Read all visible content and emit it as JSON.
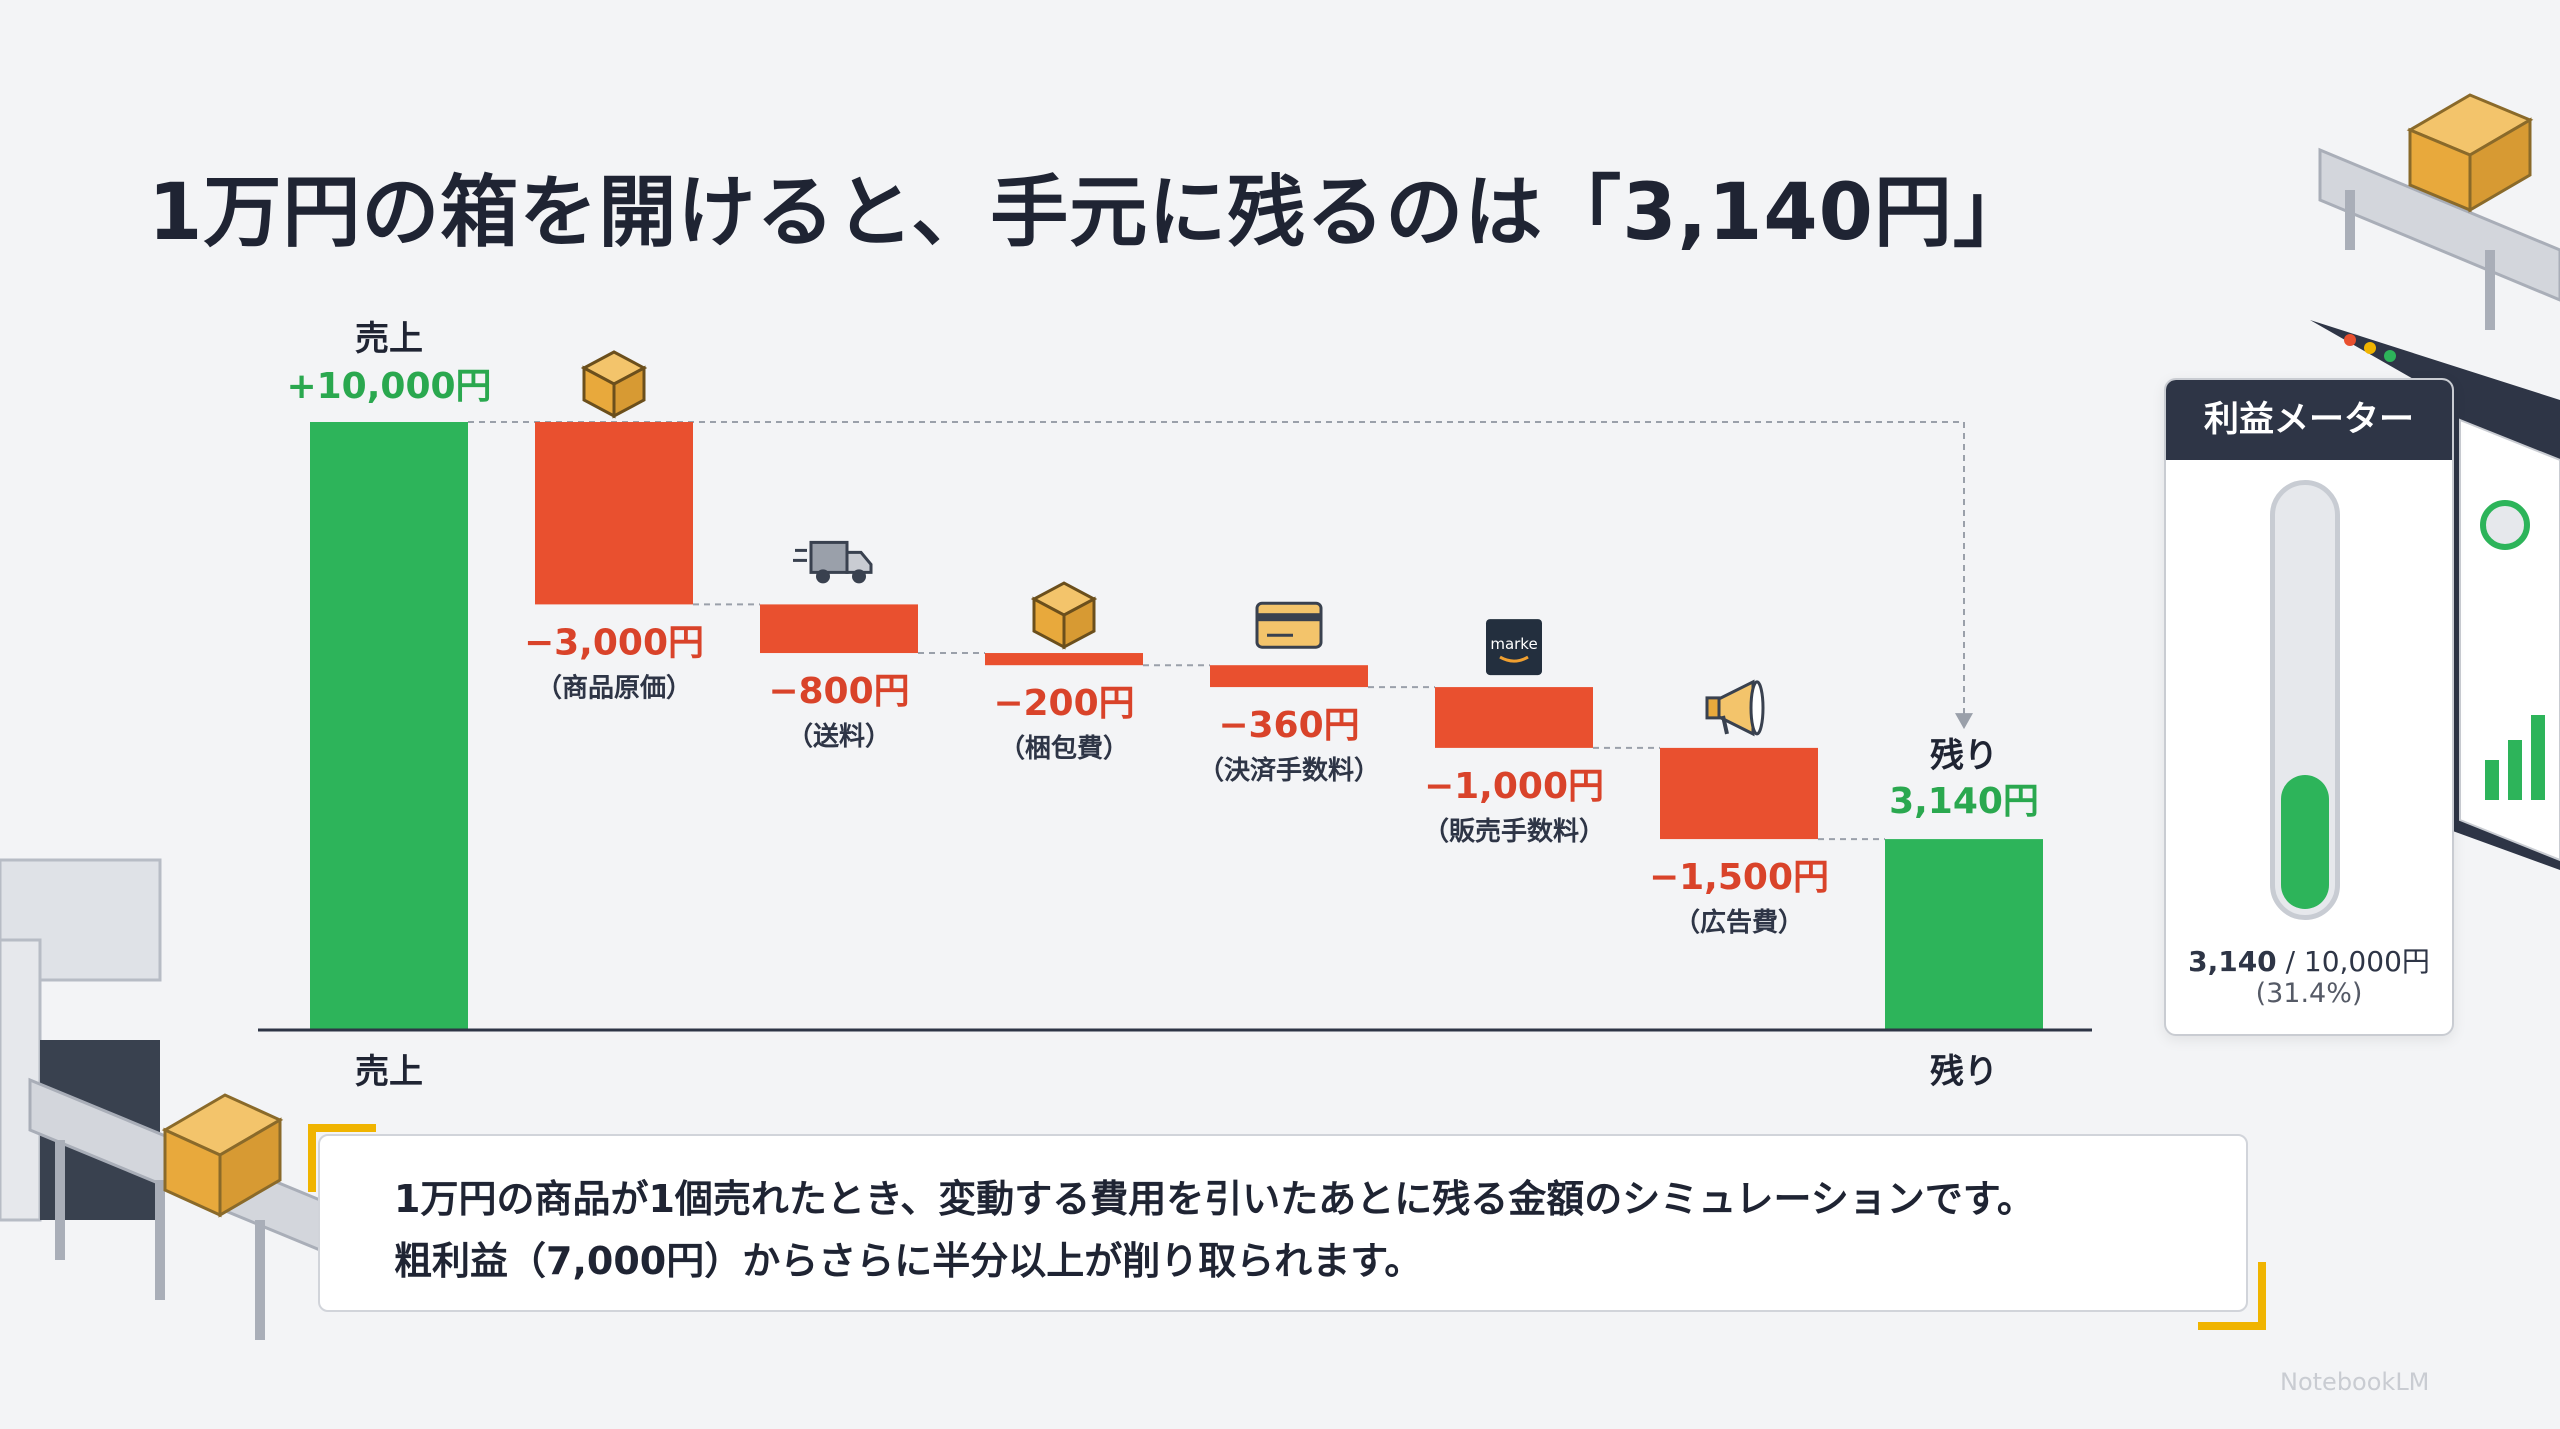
{
  "title": "1万円の箱を開けると、手元に残るのは「3,140円」",
  "chart_data": {
    "type": "bar",
    "subtype": "waterfall",
    "currency_unit": "円",
    "start": {
      "name": "売上",
      "value": 10000,
      "value_label": "+10,000円",
      "axis_label": "売上"
    },
    "steps": [
      {
        "name": "商品原価",
        "value": -3000,
        "value_label": "−3,000円",
        "sub_label": "（商品原価）",
        "icon": "package-icon"
      },
      {
        "name": "送料",
        "value": -800,
        "value_label": "−800円",
        "sub_label": "（送料）",
        "icon": "delivery-truck-icon"
      },
      {
        "name": "梱包費",
        "value": -200,
        "value_label": "−200円",
        "sub_label": "（梱包費）",
        "icon": "package-icon"
      },
      {
        "name": "決済手数料",
        "value": -360,
        "value_label": "−360円",
        "sub_label": "（決済手数料）",
        "icon": "credit-card-icon"
      },
      {
        "name": "販売手数料",
        "value": -1000,
        "value_label": "−1,000円",
        "sub_label": "（販売手数料）",
        "icon": "marketplace-icon",
        "icon_text": "marke"
      },
      {
        "name": "広告費",
        "value": -1500,
        "value_label": "−1,500円",
        "sub_label": "（広告費）",
        "icon": "megaphone-icon"
      }
    ],
    "end": {
      "name": "残り",
      "value": 3140,
      "value_label": "3,140円",
      "axis_label": "残り"
    },
    "ylim": [
      0,
      10000
    ],
    "colors": {
      "positive": "#2db45a",
      "negative": "#e9502f",
      "positive_text": "#2aa84f",
      "negative_text": "#d9432a"
    }
  },
  "meter": {
    "title": "利益メーター",
    "value": 3140,
    "max": 10000,
    "fraction": 0.314,
    "value_text": "3,140",
    "max_text": " / 10,000円",
    "percent_text": "(31.4%)"
  },
  "note": {
    "line1": "1万円の商品が1個売れたとき、変動する費用を引いたあとに残る金額のシミュレーションです。",
    "line2": "粗利益（7,000円）からさらに半分以上が削り取られます。"
  },
  "watermark": "NotebookLM"
}
